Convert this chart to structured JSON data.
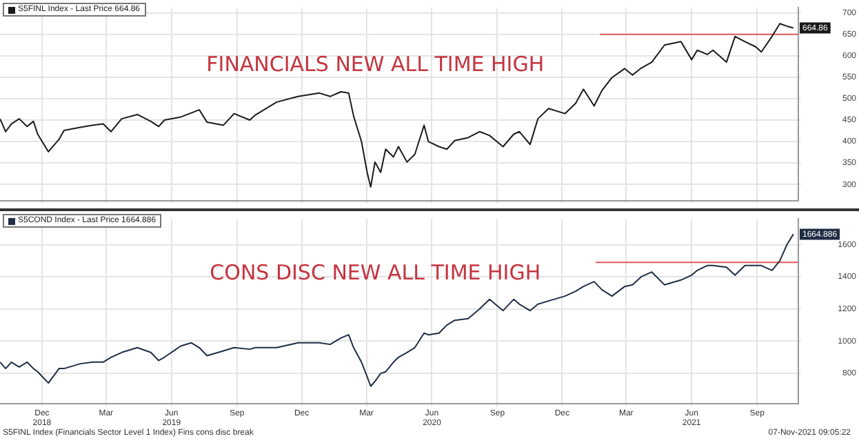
{
  "chart_data": [
    {
      "type": "line",
      "legend": "top left",
      "grid": true,
      "tick_labels": "y",
      "xlim": [
        "2018-10-17",
        "2021-11-12"
      ],
      "ylim": [
        262,
        712
      ],
      "yticks": [
        300,
        350,
        400,
        450,
        500,
        550,
        600,
        650,
        700
      ],
      "xticks": [
        {
          "value": "2018-12-15",
          "label": null
        },
        {
          "value": "2019-03-15",
          "label": null
        },
        {
          "value": "2019-06-15",
          "label": null
        },
        {
          "value": "2019-09-15",
          "label": null
        },
        {
          "value": "2019-12-15",
          "label": null
        },
        {
          "value": "2020-03-15",
          "label": null
        },
        {
          "value": "2020-06-15",
          "label": null
        },
        {
          "value": "2020-09-15",
          "label": null
        },
        {
          "value": "2020-12-15",
          "label": null
        },
        {
          "value": "2021-03-15",
          "label": null
        },
        {
          "value": "2021-06-15",
          "label": null
        },
        {
          "value": "2021-09-15",
          "label": null
        }
      ],
      "x": [
        "2018-10-17",
        "2018-10-25",
        "2018-11-02",
        "2018-11-13",
        "2018-11-24",
        "2018-12-03",
        "2018-12-09",
        "2018-12-24",
        "2019-01-08",
        "2019-01-15",
        "2019-02-07",
        "2019-02-24",
        "2019-03-11",
        "2019-03-22",
        "2019-04-06",
        "2019-04-28",
        "2019-05-17",
        "2019-05-28",
        "2019-06-05",
        "2019-06-28",
        "2019-07-24",
        "2019-08-04",
        "2019-08-27",
        "2019-09-11",
        "2019-10-03",
        "2019-10-11",
        "2019-11-10",
        "2019-12-10",
        "2020-01-09",
        "2020-01-24",
        "2020-02-08",
        "2020-02-19",
        "2020-02-26",
        "2020-03-08",
        "2020-03-16",
        "2020-03-21",
        "2020-03-27",
        "2020-04-04",
        "2020-04-11",
        "2020-04-22",
        "2020-04-29",
        "2020-05-11",
        "2020-05-22",
        "2020-06-04",
        "2020-06-10",
        "2020-06-25",
        "2020-07-06",
        "2020-07-17",
        "2020-08-05",
        "2020-08-21",
        "2020-09-04",
        "2020-09-23",
        "2020-10-08",
        "2020-10-16",
        "2020-10-31",
        "2020-11-11",
        "2020-11-26",
        "2020-12-19",
        "2021-01-03",
        "2021-01-14",
        "2021-01-29",
        "2021-02-09",
        "2021-02-23",
        "2021-03-13",
        "2021-03-24",
        "2021-04-05",
        "2021-04-20",
        "2021-05-08",
        "2021-05-31",
        "2021-06-15",
        "2021-06-23",
        "2021-07-07",
        "2021-07-15",
        "2021-08-03",
        "2021-08-15",
        "2021-08-29",
        "2021-09-13",
        "2021-09-21",
        "2021-10-06",
        "2021-10-17",
        "2021-10-27",
        "2021-11-05"
      ],
      "series": [
        {
          "name": "S5FINL Index - Last Price 664.86",
          "color": "#1a1a1a",
          "values": [
            453,
            423,
            441,
            453,
            435,
            447,
            417,
            376,
            405,
            426,
            433,
            438,
            441,
            423,
            453,
            463,
            447,
            435,
            450,
            457,
            474,
            445,
            438,
            465,
            450,
            462,
            492,
            505,
            513,
            505,
            516,
            513,
            459,
            400,
            328,
            294,
            352,
            328,
            382,
            364,
            388,
            352,
            370,
            438,
            400,
            388,
            382,
            402,
            409,
            423,
            414,
            388,
            417,
            423,
            393,
            453,
            477,
            465,
            489,
            522,
            483,
            519,
            549,
            570,
            555,
            571,
            585,
            625,
            633,
            591,
            613,
            603,
            613,
            585,
            645,
            633,
            621,
            609,
            645,
            675,
            669,
            664.86
          ],
          "value_labels": [
            null,
            null,
            null,
            null,
            null,
            null,
            null,
            null,
            null,
            null,
            null,
            null,
            null,
            null,
            null,
            null,
            null,
            null,
            null,
            null,
            null,
            null,
            null,
            null,
            null,
            null,
            null,
            null,
            null,
            null,
            null,
            null,
            null,
            null,
            null,
            null,
            null,
            null,
            null,
            null,
            null,
            null,
            null,
            null,
            null,
            null,
            null,
            null,
            null,
            null,
            null,
            null,
            null,
            null,
            null,
            null,
            null,
            null,
            null,
            null,
            null,
            null,
            null,
            null,
            null,
            null,
            null,
            null,
            null,
            null,
            null,
            null,
            null,
            null,
            null,
            null,
            null,
            null,
            null,
            null,
            null,
            "664.86"
          ]
        },
        {
          "type": "line",
          "color": "#e05a5a",
          "x": [
            "2021-02-06",
            "2021-11-12"
          ],
          "values": [
            650,
            650
          ]
        }
      ],
      "annotations": [
        "FINANCIALS NEW ALL TIME HIGH"
      ]
    },
    {
      "type": "line",
      "legend": "top left",
      "grid": true,
      "xlim": [
        "2018-10-17",
        "2021-11-12"
      ],
      "ylim": [
        611,
        1760
      ],
      "yticks": [
        800,
        1000,
        1200,
        1400,
        1600
      ],
      "xticks": [
        {
          "value": "2018-12-15",
          "label": "Dec\n2018"
        },
        {
          "value": "2019-03-15",
          "label": "Mar"
        },
        {
          "value": "2019-06-15",
          "label": "Jun\n2019"
        },
        {
          "value": "2019-09-15",
          "label": "Sep"
        },
        {
          "value": "2019-12-15",
          "label": "Dec"
        },
        {
          "value": "2020-03-15",
          "label": "Mar"
        },
        {
          "value": "2020-06-15",
          "label": "Jun\n2020"
        },
        {
          "value": "2020-09-15",
          "label": "Sep"
        },
        {
          "value": "2020-12-15",
          "label": "Dec"
        },
        {
          "value": "2021-03-15",
          "label": "Mar"
        },
        {
          "value": "2021-06-15",
          "label": "Jun\n2021"
        },
        {
          "value": "2021-09-15",
          "label": "Sep"
        }
      ],
      "x": [
        "2018-10-17",
        "2018-10-25",
        "2018-11-02",
        "2018-11-13",
        "2018-11-24",
        "2018-12-03",
        "2018-12-09",
        "2018-12-24",
        "2019-01-08",
        "2019-01-15",
        "2019-02-07",
        "2019-02-24",
        "2019-03-11",
        "2019-03-22",
        "2019-04-06",
        "2019-04-28",
        "2019-05-17",
        "2019-05-28",
        "2019-06-05",
        "2019-06-28",
        "2019-07-13",
        "2019-07-24",
        "2019-08-04",
        "2019-08-27",
        "2019-09-11",
        "2019-10-03",
        "2019-10-11",
        "2019-11-10",
        "2019-12-10",
        "2020-01-09",
        "2020-01-24",
        "2020-02-08",
        "2020-02-19",
        "2020-02-26",
        "2020-03-08",
        "2020-03-16",
        "2020-03-21",
        "2020-03-27",
        "2020-04-04",
        "2020-04-11",
        "2020-04-22",
        "2020-04-29",
        "2020-05-11",
        "2020-05-22",
        "2020-06-04",
        "2020-06-10",
        "2020-06-25",
        "2020-07-06",
        "2020-07-17",
        "2020-08-05",
        "2020-08-21",
        "2020-09-04",
        "2020-09-23",
        "2020-10-08",
        "2020-10-16",
        "2020-10-31",
        "2020-11-11",
        "2020-11-26",
        "2020-12-19",
        "2021-01-03",
        "2021-01-14",
        "2021-01-29",
        "2021-02-09",
        "2021-02-23",
        "2021-03-13",
        "2021-03-24",
        "2021-04-05",
        "2021-04-20",
        "2021-05-08",
        "2021-05-31",
        "2021-06-15",
        "2021-06-23",
        "2021-07-07",
        "2021-07-15",
        "2021-08-03",
        "2021-08-15",
        "2021-08-29",
        "2021-09-13",
        "2021-09-21",
        "2021-10-06",
        "2021-10-17",
        "2021-10-27",
        "2021-11-05"
      ],
      "series": [
        {
          "name": "S5COND Index - Last Price 1664.886",
          "color": "#1f2d45",
          "values": [
            870,
            830,
            870,
            840,
            870,
            830,
            810,
            740,
            830,
            830,
            860,
            870,
            870,
            900,
            930,
            960,
            930,
            880,
            900,
            970,
            990,
            960,
            910,
            940,
            960,
            950,
            960,
            960,
            990,
            990,
            980,
            1020,
            1040,
            960,
            870,
            780,
            720,
            750,
            800,
            810,
            870,
            900,
            930,
            960,
            1050,
            1040,
            1050,
            1100,
            1130,
            1140,
            1200,
            1260,
            1190,
            1260,
            1230,
            1190,
            1230,
            1250,
            1280,
            1310,
            1340,
            1370,
            1320,
            1280,
            1340,
            1350,
            1400,
            1430,
            1350,
            1380,
            1410,
            1440,
            1470,
            1470,
            1460,
            1410,
            1470,
            1470,
            1470,
            1440,
            1500,
            1600,
            1664.886
          ],
          "value_labels": [
            null,
            null,
            null,
            null,
            null,
            null,
            null,
            null,
            null,
            null,
            null,
            null,
            null,
            null,
            null,
            null,
            null,
            null,
            null,
            null,
            null,
            null,
            null,
            null,
            null,
            null,
            null,
            null,
            null,
            null,
            null,
            null,
            null,
            null,
            null,
            null,
            null,
            null,
            null,
            null,
            null,
            null,
            null,
            null,
            null,
            null,
            null,
            null,
            null,
            null,
            null,
            null,
            null,
            null,
            null,
            null,
            null,
            null,
            null,
            null,
            null,
            null,
            null,
            null,
            null,
            null,
            null,
            null,
            null,
            null,
            null,
            null,
            null,
            null,
            null,
            null,
            null,
            null,
            null,
            null,
            null,
            null,
            "1664.886"
          ]
        },
        {
          "type": "line",
          "color": "#e05a5a",
          "x": [
            "2021-01-31",
            "2021-11-12"
          ],
          "values": [
            1490,
            1490
          ]
        }
      ],
      "annotations": [
        "CONS DISC NEW ALL TIME HIGH",
        "S5FINL Index (Financials Sector Level 1 Index) Fins cons disc break",
        "07-Nov-2021 09:05:22"
      ]
    }
  ]
}
